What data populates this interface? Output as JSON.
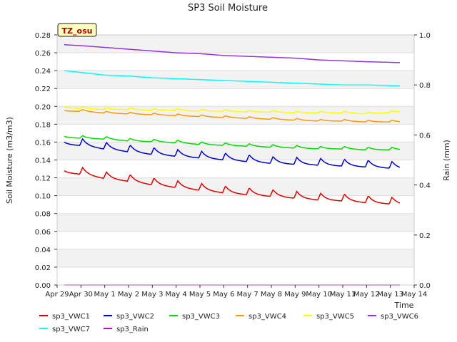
{
  "chart_data": {
    "type": "line",
    "title": "SP3 Soil Moisture",
    "xlabel": "Time",
    "ylabel": "Soil Moisture (m3/m3)",
    "y2label": "Rain (mm)",
    "badge": "TZ_osu",
    "xlim": [
      0,
      15
    ],
    "ylim": [
      0,
      0.28
    ],
    "y2lim": [
      0,
      1.0
    ],
    "x_ticks": [
      "Apr 29",
      "Apr 30",
      "May 1",
      "May 2",
      "May 3",
      "May 4",
      "May 5",
      "May 6",
      "May 7",
      "May 8",
      "May 9",
      "May 10",
      "May 11",
      "May 12",
      "May 13",
      "May 14"
    ],
    "y_ticks": [
      "0.00",
      "0.02",
      "0.04",
      "0.06",
      "0.08",
      "0.10",
      "0.12",
      "0.14",
      "0.16",
      "0.18",
      "0.20",
      "0.22",
      "0.24",
      "0.26",
      "0.28"
    ],
    "y2_ticks": [
      "0.0",
      "0.2",
      "0.4",
      "0.6",
      "0.8",
      "1.0"
    ],
    "grid": true,
    "legend_position": "bottom",
    "series": [
      {
        "name": "sp3_VWC1",
        "color": "#dd0000",
        "axis": "left",
        "x": [
          0.3,
          1,
          2,
          3,
          4,
          5,
          6,
          7,
          8,
          9,
          10,
          11,
          12,
          13,
          14.4
        ],
        "y": [
          0.127,
          0.126,
          0.121,
          0.118,
          0.114,
          0.111,
          0.108,
          0.105,
          0.103,
          0.101,
          0.099,
          0.097,
          0.096,
          0.094,
          0.092
        ],
        "spike": 0.008
      },
      {
        "name": "sp3_VWC2",
        "color": "#0000cc",
        "axis": "left",
        "x": [
          0.3,
          1,
          2,
          3,
          4,
          5,
          6,
          7,
          8,
          9,
          10,
          11,
          12,
          13,
          14.4
        ],
        "y": [
          0.159,
          0.158,
          0.154,
          0.151,
          0.148,
          0.146,
          0.144,
          0.142,
          0.14,
          0.138,
          0.137,
          0.136,
          0.135,
          0.134,
          0.132
        ],
        "spike": 0.008
      },
      {
        "name": "sp3_VWC3",
        "color": "#00dd00",
        "axis": "left",
        "x": [
          0.3,
          1,
          2,
          3,
          4,
          5,
          6,
          7,
          8,
          9,
          10,
          11,
          12,
          13,
          14.4
        ],
        "y": [
          0.166,
          0.165,
          0.164,
          0.162,
          0.161,
          0.16,
          0.158,
          0.157,
          0.156,
          0.155,
          0.154,
          0.153,
          0.153,
          0.152,
          0.152
        ],
        "spike": 0.003
      },
      {
        "name": "sp3_VWC4",
        "color": "#ff9900",
        "axis": "left",
        "x": [
          0.3,
          1,
          2,
          3,
          4,
          5,
          6,
          7,
          8,
          9,
          10,
          11,
          12,
          13,
          14.4
        ],
        "y": [
          0.195,
          0.195,
          0.193,
          0.192,
          0.191,
          0.19,
          0.189,
          0.188,
          0.187,
          0.186,
          0.185,
          0.184,
          0.184,
          0.183,
          0.183
        ],
        "spike": 0.002
      },
      {
        "name": "sp3_VWC5",
        "color": "#ffff00",
        "axis": "left",
        "x": [
          0.3,
          1,
          2,
          3,
          4,
          5,
          6,
          7,
          8,
          9,
          10,
          11,
          12,
          13,
          14.4
        ],
        "y": [
          0.199,
          0.198,
          0.197,
          0.197,
          0.196,
          0.196,
          0.195,
          0.195,
          0.194,
          0.194,
          0.193,
          0.193,
          0.193,
          0.192,
          0.194
        ],
        "spike": 0.002
      },
      {
        "name": "sp3_VWC6",
        "color": "#9933dd",
        "axis": "left",
        "x": [
          0.3,
          1,
          2,
          3,
          4,
          5,
          6,
          7,
          8,
          9,
          10,
          11,
          12,
          13,
          14.4
        ],
        "y": [
          0.269,
          0.268,
          0.266,
          0.264,
          0.262,
          0.26,
          0.259,
          0.257,
          0.256,
          0.255,
          0.254,
          0.252,
          0.251,
          0.25,
          0.249
        ],
        "spike": 0.0
      },
      {
        "name": "sp3_VWC7",
        "color": "#00ffff",
        "axis": "left",
        "x": [
          0.3,
          1,
          2,
          3,
          4,
          5,
          6,
          7,
          8,
          9,
          10,
          11,
          12,
          13,
          14.4
        ],
        "y": [
          0.24,
          0.238,
          0.235,
          0.234,
          0.232,
          0.231,
          0.23,
          0.229,
          0.228,
          0.227,
          0.226,
          0.225,
          0.224,
          0.224,
          0.223
        ],
        "spike": 0.0
      },
      {
        "name": "sp3_Rain",
        "color": "#cc00cc",
        "axis": "right",
        "x": [
          0.3,
          14.4
        ],
        "y": [
          0,
          0
        ],
        "spike": 0.0
      }
    ]
  }
}
